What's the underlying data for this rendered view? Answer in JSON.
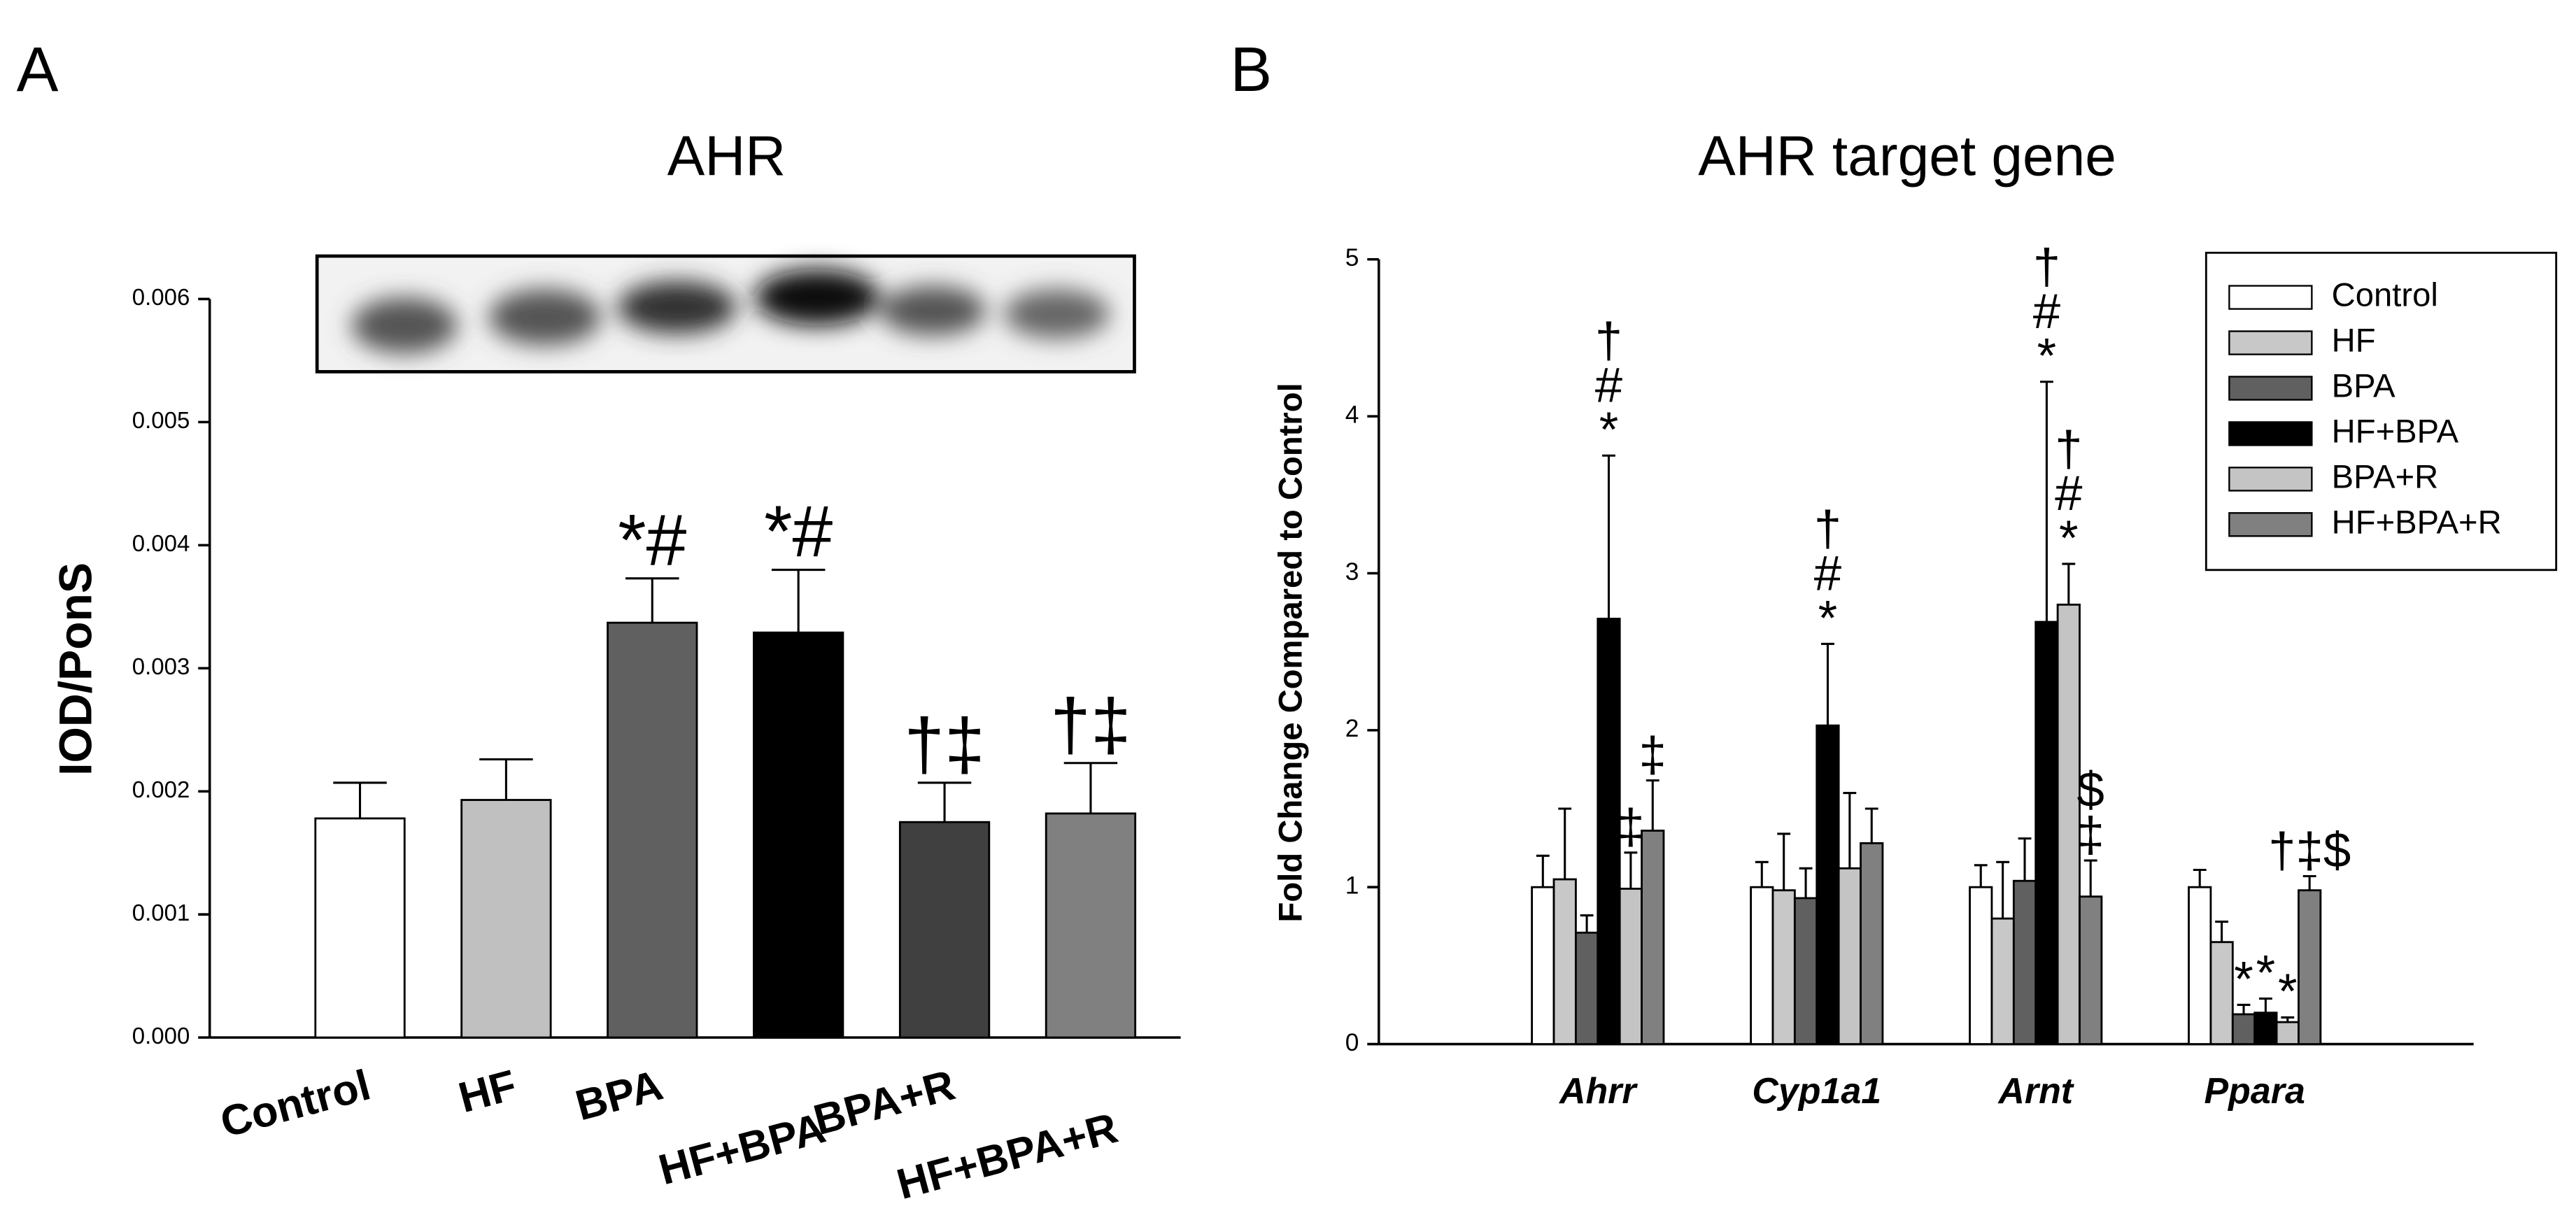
{
  "chart_data": [
    {
      "type": "bar",
      "panel_label": "A",
      "title": "AHR",
      "y_label": "IOD/PonS",
      "categories": [
        "Control",
        "HF",
        "BPA",
        "HF+BPA",
        "BPA+R",
        "HF+BPA+R"
      ],
      "values": [
        0.00178,
        0.00193,
        0.00337,
        0.00329,
        0.00175,
        0.00182
      ],
      "errors": [
        0.00029,
        0.00033,
        0.00036,
        0.00051,
        0.00032,
        0.00041
      ],
      "colors": [
        "#ffffff",
        "#c0c0c0",
        "#606060",
        "#000000",
        "#404040",
        "#808080"
      ],
      "annotations": [
        null,
        null,
        [
          "*#"
        ],
        [
          "*#"
        ],
        [
          "†‡"
        ],
        [
          "†‡"
        ]
      ],
      "ylim": [
        0,
        0.006
      ],
      "yticks": [
        {
          "value": 0,
          "label": "0.000"
        },
        {
          "value": 0.001,
          "label": "0.001"
        },
        {
          "value": 0.002,
          "label": "0.002"
        },
        {
          "value": 0.003,
          "label": "0.003"
        },
        {
          "value": 0.004,
          "label": "0.004"
        },
        {
          "value": 0.005,
          "label": "0.005"
        },
        {
          "value": 0.006,
          "label": "0.006"
        }
      ]
    },
    {
      "type": "bar",
      "panel_label": "B",
      "title": "AHR target gene",
      "y_label": "Fold Change Compared to Control",
      "categories": [
        "Ahrr",
        "Cyp1a1",
        "Arnt",
        "Ppara"
      ],
      "series": [
        {
          "name": "Control",
          "color": "#ffffff",
          "values": [
            1.0,
            1.0,
            1.0,
            1.0
          ],
          "errors": [
            0.2,
            0.16,
            0.14,
            0.11
          ],
          "annotations": [
            null,
            null,
            null,
            null
          ]
        },
        {
          "name": "HF",
          "color": "#c8c8c8",
          "values": [
            1.05,
            0.98,
            0.8,
            0.65
          ],
          "errors": [
            0.45,
            0.36,
            0.36,
            0.13
          ],
          "annotations": [
            null,
            null,
            null,
            null
          ]
        },
        {
          "name": "BPA",
          "color": "#606060",
          "values": [
            0.71,
            0.93,
            1.04,
            0.19
          ],
          "errors": [
            0.11,
            0.19,
            0.27,
            0.06
          ],
          "annotations": [
            null,
            null,
            null,
            [
              "*"
            ]
          ]
        },
        {
          "name": "HF+BPA",
          "color": "#000000",
          "values": [
            2.71,
            2.03,
            2.69,
            0.2
          ],
          "errors": [
            1.04,
            0.52,
            1.53,
            0.09
          ],
          "annotations": [
            [
              "†",
              "#",
              "*"
            ],
            [
              "†",
              "#",
              "*"
            ],
            [
              "†",
              "#",
              "*"
            ],
            [
              "*"
            ]
          ]
        },
        {
          "name": "BPA+R",
          "color": "#c4c4c4",
          "values": [
            0.99,
            1.12,
            2.8,
            0.14
          ],
          "errors": [
            0.23,
            0.48,
            0.26,
            0.03
          ],
          "annotations": [
            [
              "‡"
            ],
            null,
            [
              "†",
              "#",
              "*"
            ],
            [
              "*"
            ]
          ]
        },
        {
          "name": "HF+BPA+R",
          "color": "#808080",
          "values": [
            1.36,
            1.28,
            0.94,
            0.98
          ],
          "errors": [
            0.32,
            0.22,
            0.23,
            0.09
          ],
          "annotations": [
            [
              "‡"
            ],
            null,
            [
              "$",
              "‡"
            ],
            [
              "†‡$"
            ]
          ]
        }
      ],
      "ylim": [
        0,
        5
      ],
      "yticks": [
        0,
        1,
        2,
        3,
        4,
        5
      ]
    }
  ]
}
